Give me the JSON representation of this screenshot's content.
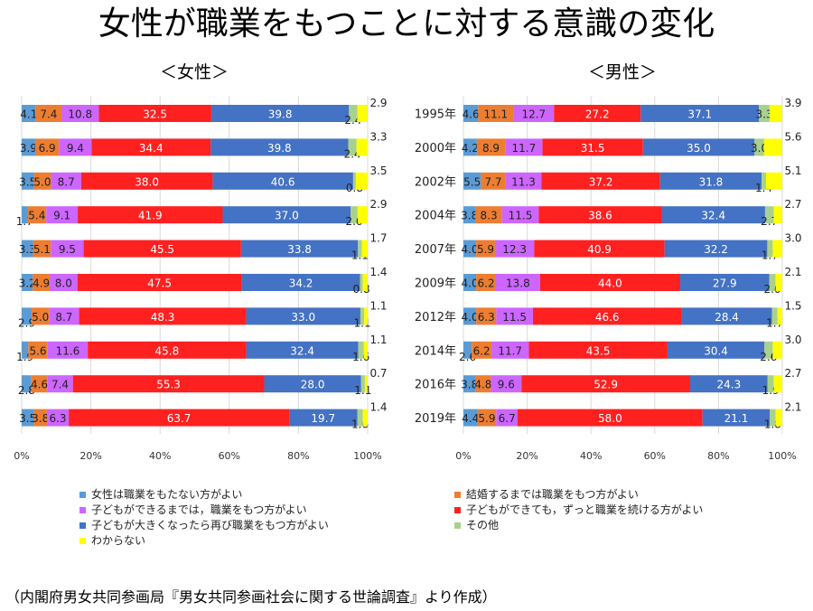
{
  "title": "女性が職業をもつことに対する意識の変化",
  "source": "（内閣府男女共同参画局『男女共同参画社会に関する世論調査』より作成）",
  "colors": {
    "c1": "#5b9bd5",
    "c2": "#ed7d31",
    "c3": "#cc66ff",
    "c4": "#ff2020",
    "c5": "#4472c4",
    "c6": "#a9d18e",
    "c7": "#ffff00"
  },
  "chart_data": [
    {
      "type": "bar",
      "orientation": "horizontal",
      "stacked": "100%",
      "title": "＜女性＞",
      "categories": [
        "1995年",
        "2000年",
        "2002年",
        "2004年",
        "2007年",
        "2009年",
        "2012年",
        "2014年",
        "2016年",
        "2019年"
      ],
      "xticks": [
        "0%",
        "20%",
        "40%",
        "60%",
        "80%",
        "100%"
      ],
      "series": [
        {
          "name": "女性は職業をもたない方がよい",
          "color_key": "c1",
          "values": [
            4.1,
            3.9,
            3.5,
            1.7,
            3.3,
            3.2,
            2.9,
            1.9,
            2.8,
            3.5
          ]
        },
        {
          "name": "結婚するまでは職業をもつ方がよい",
          "color_key": "c2",
          "values": [
            7.4,
            6.9,
            5.0,
            5.4,
            5.1,
            4.9,
            5.0,
            5.6,
            4.6,
            3.8
          ]
        },
        {
          "name": "子どもができるまでは，職業をもつ方がよい",
          "color_key": "c3",
          "values": [
            10.8,
            9.4,
            8.7,
            9.1,
            9.5,
            8.0,
            8.7,
            11.6,
            7.4,
            6.3
          ]
        },
        {
          "name": "子どもができても，ずっと職業を続ける方がよい",
          "color_key": "c4",
          "values": [
            32.5,
            34.4,
            38.0,
            41.9,
            45.5,
            47.5,
            48.3,
            45.8,
            55.3,
            63.7
          ]
        },
        {
          "name": "子どもが大きくなったら再び職業をもつ方がよい",
          "color_key": "c5",
          "values": [
            39.8,
            39.8,
            40.6,
            37.0,
            33.8,
            34.2,
            33.0,
            32.4,
            28.0,
            19.7
          ]
        },
        {
          "name": "その他",
          "color_key": "c6",
          "values": [
            2.4,
            2.4,
            0.8,
            2.0,
            1.1,
            0.8,
            1.1,
            1.6,
            1.1,
            1.6
          ]
        },
        {
          "name": "わからない",
          "color_key": "c7",
          "values": [
            2.9,
            3.3,
            3.5,
            2.9,
            1.7,
            1.4,
            1.1,
            1.1,
            0.7,
            1.4
          ]
        }
      ],
      "labels": [
        [
          "4.1",
          "7.4",
          "10.8",
          "32.5",
          "39.8",
          "2.4",
          "2.9"
        ],
        [
          "3.9",
          "6.9",
          "9.4",
          "34.4",
          "39.8",
          "2.4",
          "3.3"
        ],
        [
          "3.5",
          "5.0",
          "8.7",
          "38.0",
          "40.6",
          "0.8",
          "3.5"
        ],
        [
          "1.7",
          "5.4",
          "9.1",
          "41.9",
          "37.0",
          "2.0",
          "2.9"
        ],
        [
          "3.3",
          "5.1",
          "9.5",
          "45.5",
          "33.8",
          "1.1",
          "1.7"
        ],
        [
          "3.2",
          "4.9",
          "8.0",
          "47.5",
          "34.2",
          "0.8",
          "1.4"
        ],
        [
          "2.9",
          "5.0",
          "8.7",
          "48.3",
          "33.0",
          "1.1",
          "1.1"
        ],
        [
          "1.9",
          "5.6",
          "11.6",
          "45.8",
          "32.4",
          "1.6",
          "1.1"
        ],
        [
          "2.8",
          "4.6",
          "7.4",
          "55.3",
          "28.0",
          "1.1",
          "0.7"
        ],
        [
          "3.5",
          "3.8",
          "6.3",
          "63.7",
          "19.7",
          "1.6",
          "1.4"
        ]
      ],
      "xlim": [
        0,
        100
      ]
    },
    {
      "type": "bar",
      "orientation": "horizontal",
      "stacked": "100%",
      "title": "＜男性＞",
      "categories": [
        "1995年",
        "2000年",
        "2002年",
        "2004年",
        "2007年",
        "2009年",
        "2012年",
        "2014年",
        "2016年",
        "2019年"
      ],
      "xticks": [
        "0%",
        "20%",
        "40%",
        "60%",
        "80%",
        "100%"
      ],
      "series": [
        {
          "name": "女性は職業をもたない方がよい",
          "color_key": "c1",
          "values": [
            4.6,
            4.2,
            5.5,
            3.8,
            4.0,
            4.0,
            4.0,
            2.6,
            3.8,
            4.4
          ]
        },
        {
          "name": "結婚するまでは職業をもつ方がよい",
          "color_key": "c2",
          "values": [
            11.1,
            8.9,
            7.7,
            8.3,
            5.9,
            6.2,
            6.3,
            6.2,
            4.8,
            5.9
          ]
        },
        {
          "name": "子どもができるまでは，職業をもつ方がよい",
          "color_key": "c3",
          "values": [
            12.7,
            11.7,
            11.3,
            11.5,
            12.3,
            13.8,
            11.5,
            11.7,
            9.6,
            6.7
          ]
        },
        {
          "name": "子どもができても，ずっと職業を続ける方がよい",
          "color_key": "c4",
          "values": [
            27.2,
            31.5,
            37.2,
            38.6,
            40.9,
            44.0,
            46.6,
            43.5,
            52.9,
            58.0
          ]
        },
        {
          "name": "子どもが大きくなったら再び職業をもつ方がよい",
          "color_key": "c5",
          "values": [
            37.1,
            35.0,
            31.8,
            32.4,
            32.2,
            27.9,
            28.4,
            30.4,
            24.3,
            21.1
          ]
        },
        {
          "name": "その他",
          "color_key": "c6",
          "values": [
            3.3,
            3.0,
            1.4,
            2.7,
            1.7,
            2.0,
            1.7,
            2.6,
            1.9,
            1.8
          ]
        },
        {
          "name": "わからない",
          "color_key": "c7",
          "values": [
            3.9,
            5.6,
            5.1,
            2.7,
            3.0,
            2.1,
            1.5,
            3.0,
            2.7,
            2.1
          ]
        }
      ],
      "labels": [
        [
          "4.6",
          "11.1",
          "12.7",
          "27.2",
          "37.1",
          "3.3",
          "3.9"
        ],
        [
          "4.2",
          "8.9",
          "11.7",
          "31.5",
          "35.0",
          "3.0",
          "5.6"
        ],
        [
          "5.5",
          "7.7",
          "11.3",
          "37.2",
          "31.8",
          "1.4",
          "5.1"
        ],
        [
          "3.8",
          "8.3",
          "11.5",
          "38.6",
          "32.4",
          "2.7",
          "2.7"
        ],
        [
          "4.0",
          "5.9",
          "12.3",
          "40.9",
          "32.2",
          "1.7",
          "3.0"
        ],
        [
          "4.0",
          "6.2",
          "13.8",
          "44.0",
          "27.9",
          "2.0",
          "2.1"
        ],
        [
          "4.0",
          "6.3",
          "11.5",
          "46.6",
          "28.4",
          "1.7",
          "1.5"
        ],
        [
          "2.6",
          "6.2",
          "11.7",
          "43.5",
          "30.4",
          "2.6",
          "3.0"
        ],
        [
          "3.8",
          "4.8",
          "9.6",
          "52.9",
          "24.3",
          "1.9",
          "2.7"
        ],
        [
          "4.4",
          "5.9",
          "6.7",
          "58.0",
          "21.1",
          "1.8",
          "2.1"
        ]
      ],
      "xlim": [
        0,
        100
      ]
    }
  ],
  "legend": [
    {
      "label": "女性は職業をもたない方がよい",
      "color_key": "c1"
    },
    {
      "label": "結婚するまでは職業をもつ方がよい",
      "color_key": "c2"
    },
    {
      "label": "子どもができるまでは，職業をもつ方がよい",
      "color_key": "c3"
    },
    {
      "label": "子どもができても，ずっと職業を続ける方がよい",
      "color_key": "c4"
    },
    {
      "label": "子どもが大きくなったら再び職業をもつ方がよい",
      "color_key": "c5"
    },
    {
      "label": "その他",
      "color_key": "c6"
    },
    {
      "label": "わからない",
      "color_key": "c7"
    }
  ]
}
